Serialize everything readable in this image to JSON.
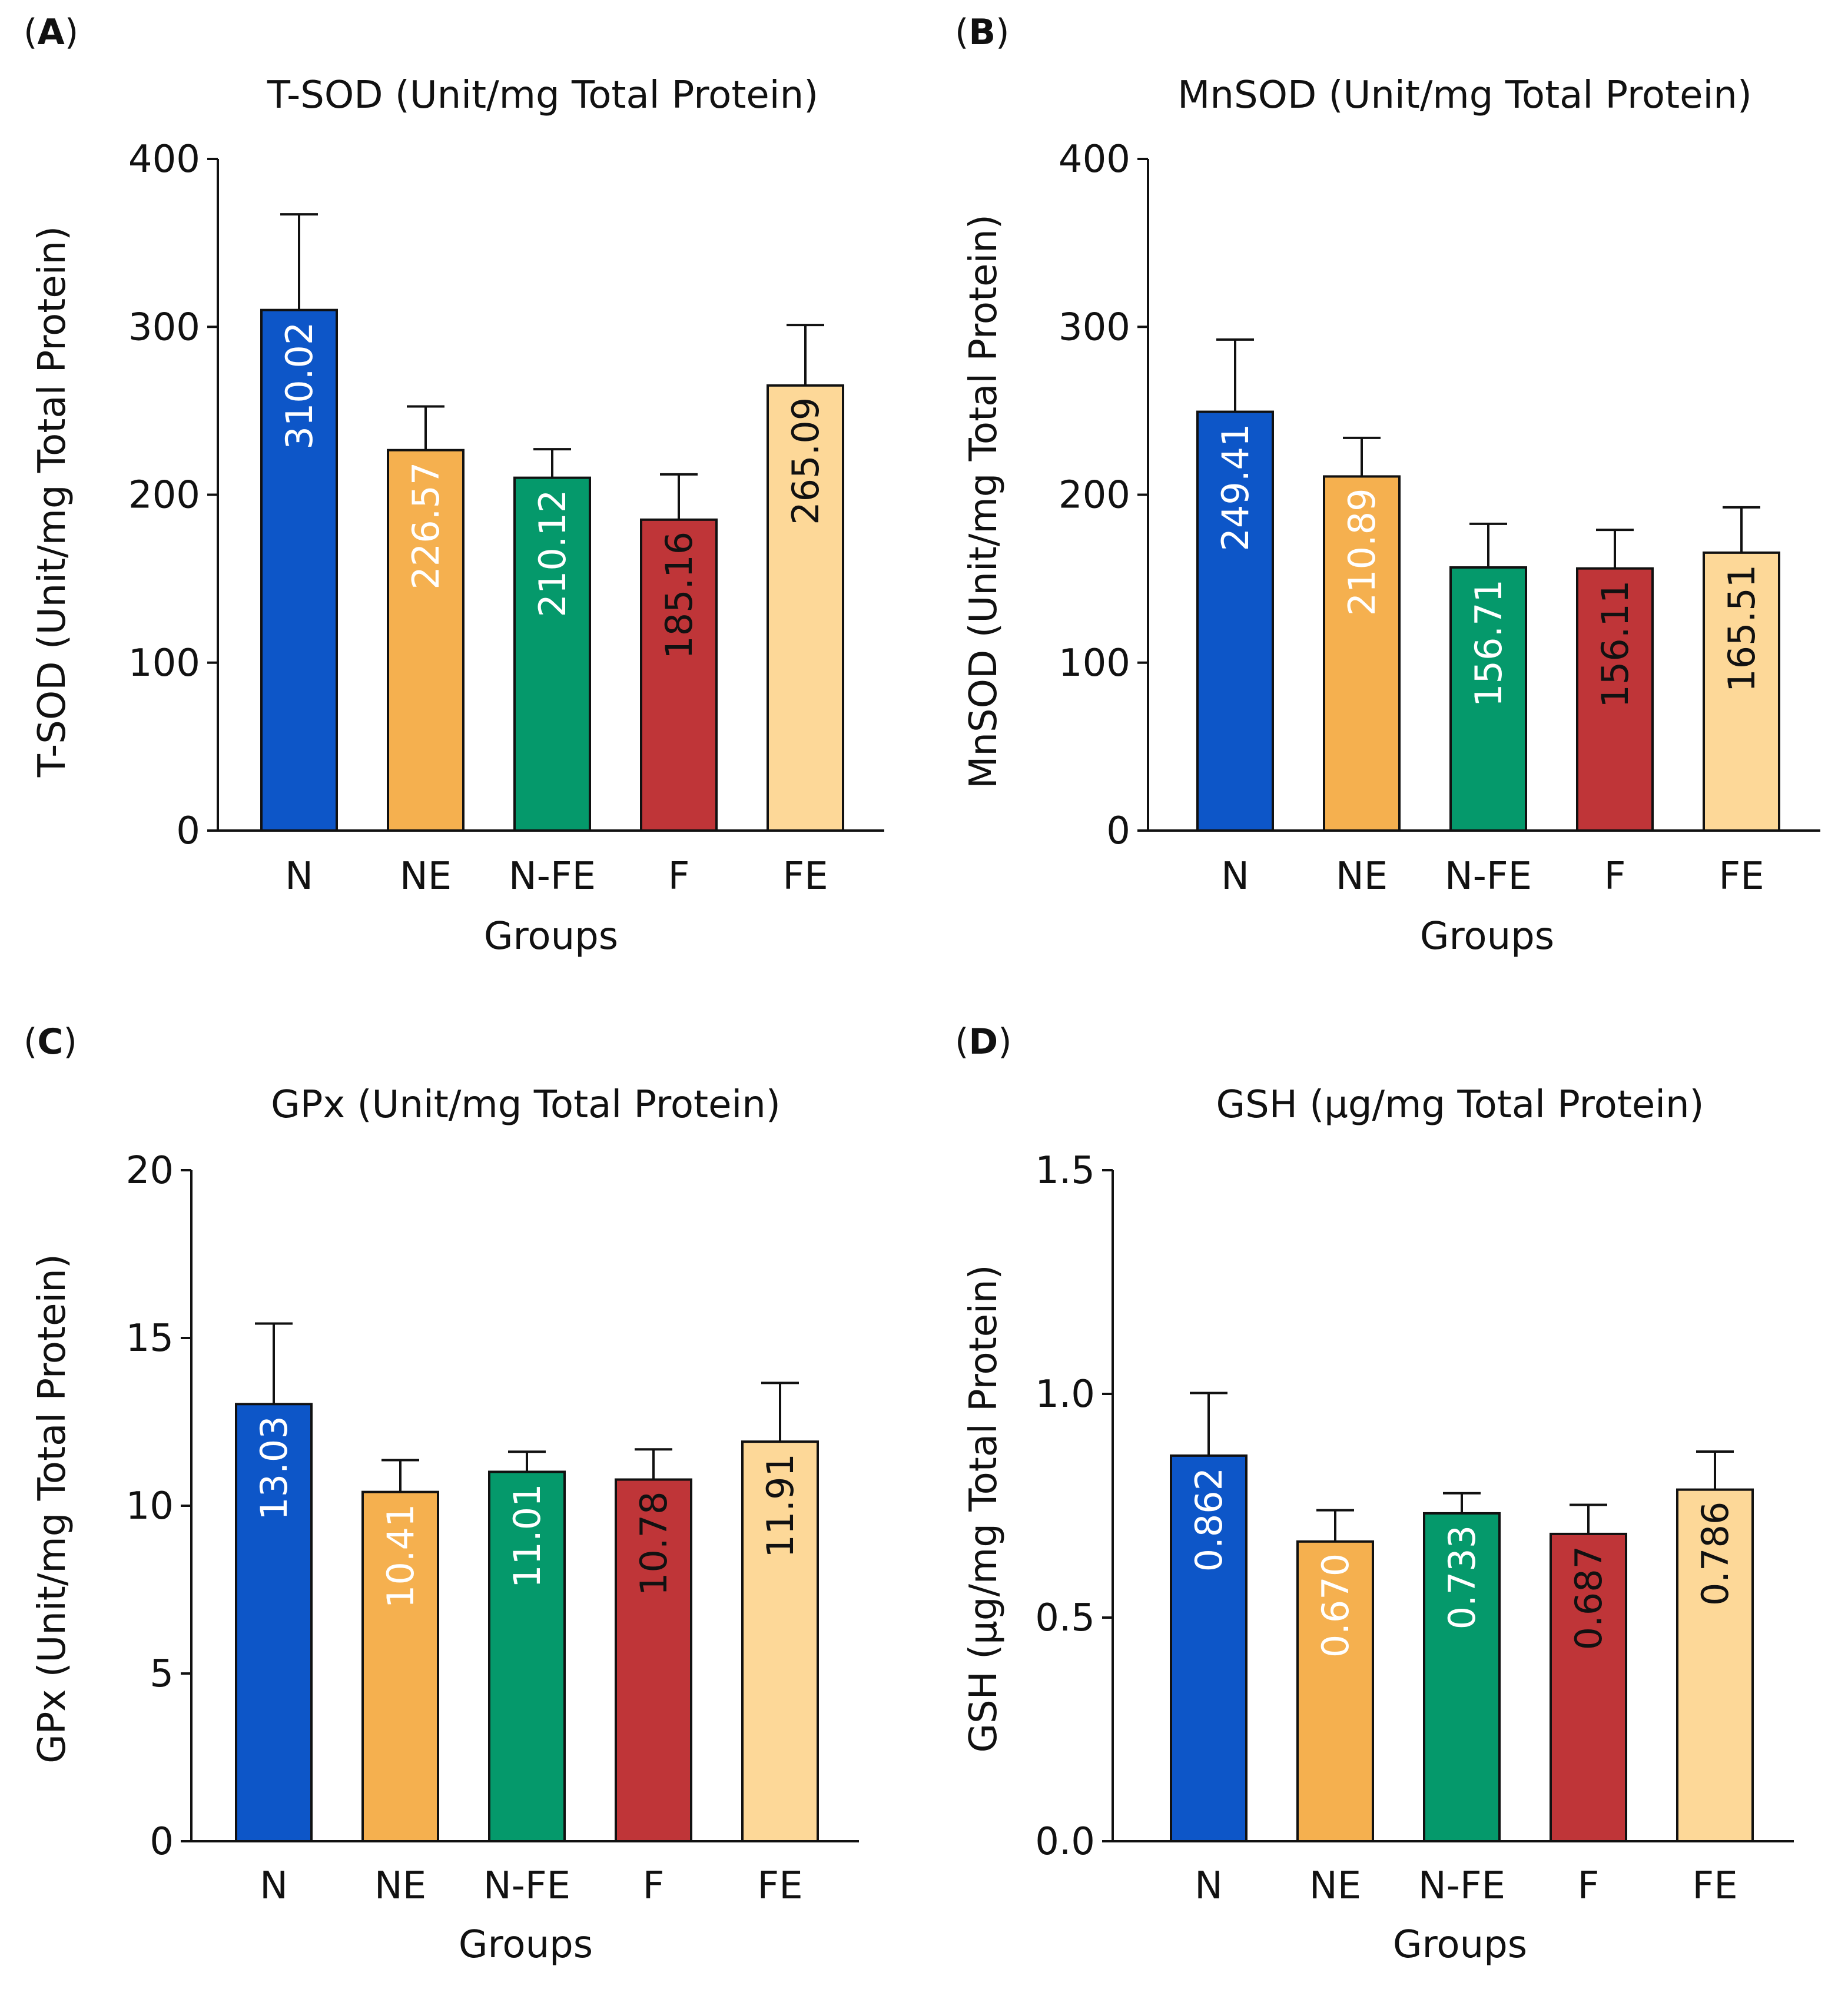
{
  "chart_data": [
    {
      "type": "bar",
      "panel": "A",
      "title": "T-SOD (Unit/mg Total Protein)",
      "ylabel": "T-SOD (Unit/mg Total Protein)",
      "xlabel": "Groups",
      "categories": [
        "N",
        "NE",
        "N-FE",
        "F",
        "FE"
      ],
      "values": [
        310.02,
        226.57,
        210.12,
        185.16,
        265.09
      ],
      "value_labels": [
        "310.02",
        "226.57",
        "210.12",
        "185.16",
        "265.09"
      ],
      "errors": [
        57,
        26,
        17,
        27,
        36
      ],
      "ylim": [
        0,
        400
      ],
      "yticks": [
        0,
        100,
        200,
        300,
        400
      ],
      "ytick_labels": [
        "0",
        "100",
        "200",
        "300",
        "400"
      ]
    },
    {
      "type": "bar",
      "panel": "B",
      "title": "MnSOD (Unit/mg Total Protein)",
      "ylabel": "MnSOD (Unit/mg Total Protein)",
      "xlabel": "Groups",
      "categories": [
        "N",
        "NE",
        "N-FE",
        "F",
        "FE"
      ],
      "values": [
        249.41,
        210.89,
        156.71,
        156.11,
        165.51
      ],
      "value_labels": [
        "249.41",
        "210.89",
        "156.71",
        "156.11",
        "165.51"
      ],
      "errors": [
        43,
        23,
        26,
        23,
        27
      ],
      "ylim": [
        0,
        400
      ],
      "yticks": [
        0,
        100,
        200,
        300,
        400
      ],
      "ytick_labels": [
        "0",
        "100",
        "200",
        "300",
        "400"
      ]
    },
    {
      "type": "bar",
      "panel": "C",
      "title": "GPx (Unit/mg Total Protein)",
      "ylabel": "GPx (Unit/mg Total Protein)",
      "xlabel": "Groups",
      "categories": [
        "N",
        "NE",
        "N-FE",
        "F",
        "FE"
      ],
      "values": [
        13.03,
        10.41,
        11.01,
        10.78,
        11.91
      ],
      "value_labels": [
        "13.03",
        "10.41",
        "11.01",
        "10.78",
        "11.91"
      ],
      "errors": [
        2.4,
        0.95,
        0.6,
        0.9,
        1.75
      ],
      "ylim": [
        0,
        20
      ],
      "yticks": [
        0,
        5,
        10,
        15,
        20
      ],
      "ytick_labels": [
        "0",
        "5",
        "10",
        "15",
        "20"
      ]
    },
    {
      "type": "bar",
      "panel": "D",
      "title": "GSH (µg/mg Total Protein)",
      "ylabel": "GSH (µg/mg Total Protein)",
      "xlabel": "Groups",
      "categories": [
        "N",
        "NE",
        "N-FE",
        "F",
        "FE"
      ],
      "values": [
        0.862,
        0.67,
        0.733,
        0.687,
        0.786
      ],
      "value_labels": [
        "0.862",
        "0.670",
        "0.733",
        "0.687",
        "0.786"
      ],
      "errors": [
        0.14,
        0.07,
        0.045,
        0.065,
        0.085
      ],
      "ylim": [
        0,
        1.5
      ],
      "yticks": [
        0,
        0.5,
        1.0,
        1.5
      ],
      "ytick_labels": [
        "0.0",
        "0.5",
        "1.0",
        "1.5"
      ]
    }
  ],
  "colors": {
    "bar_fills": [
      "#0d56c8",
      "#f5b04f",
      "#05996b",
      "#bf3538",
      "#fdd898"
    ],
    "bar_label_colors": [
      "#ffffff",
      "#ffffff",
      "#ffffff",
      "#111111",
      "#111111"
    ],
    "axis": "#111111"
  }
}
